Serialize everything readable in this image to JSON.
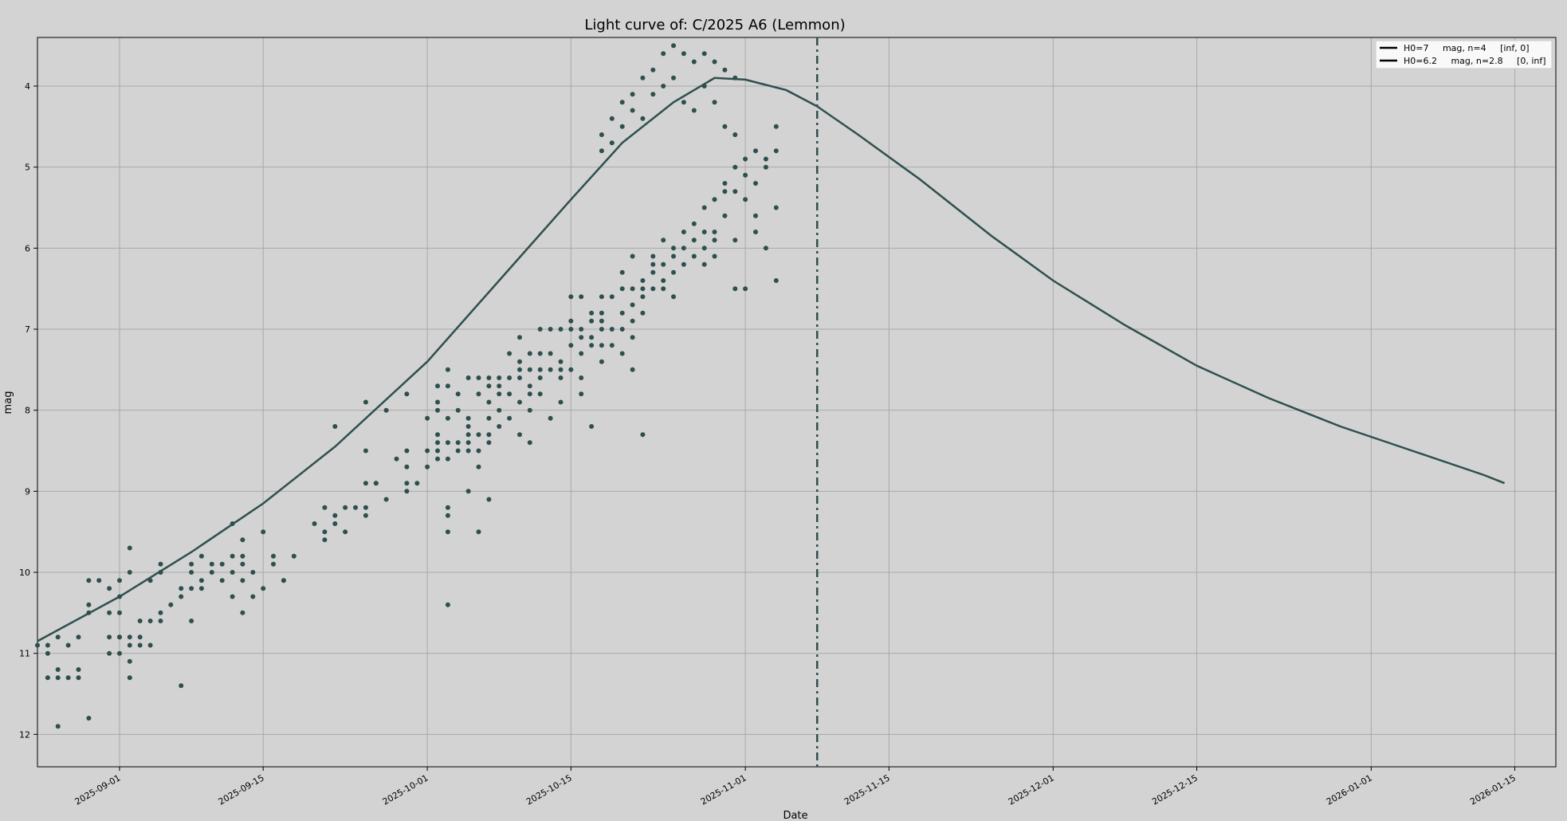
{
  "chart_data": {
    "type": "scatter",
    "title": "Light curve of: C/2025 A6 (Lemmon)",
    "xlabel": "Date",
    "ylabel": "mag",
    "xlim": [
      "2025-08-24",
      "2026-01-19"
    ],
    "ylim": [
      12.4,
      3.4
    ],
    "y_inverted": true,
    "grid": true,
    "legend_position": "top-right",
    "colors": {
      "background": "#d3d3d3",
      "series": "#2f4f4f",
      "grid": "#a9a9a9",
      "axis": "#000000"
    },
    "x_ticks": [
      "2025-09-01",
      "2025-09-15",
      "2025-10-01",
      "2025-10-15",
      "2025-11-01",
      "2025-11-15",
      "2025-12-01",
      "2025-12-15",
      "2026-01-01",
      "2026-01-15"
    ],
    "y_ticks": [
      4,
      5,
      6,
      7,
      8,
      9,
      10,
      11,
      12
    ],
    "vline_date": "2025-11-08",
    "legend": [
      {
        "label": "H0=7     mag, n=4     [inf, 0]"
      },
      {
        "label": "H0=6.2     mag, n=2.8     [0, inf]"
      }
    ],
    "model_curve": {
      "x": [
        "2025-08-24",
        "2025-09-01",
        "2025-09-08",
        "2025-09-15",
        "2025-09-22",
        "2025-10-01",
        "2025-10-08",
        "2025-10-15",
        "2025-10-20",
        "2025-10-25",
        "2025-10-29",
        "2025-11-01",
        "2025-11-05",
        "2025-11-08",
        "2025-11-12",
        "2025-11-18",
        "2025-11-25",
        "2025-12-01",
        "2025-12-08",
        "2025-12-15",
        "2025-12-22",
        "2025-12-29",
        "2026-01-05",
        "2026-01-12",
        "2026-01-14"
      ],
      "y": [
        10.85,
        10.3,
        9.75,
        9.15,
        8.45,
        7.4,
        6.4,
        5.4,
        4.7,
        4.2,
        3.9,
        3.92,
        4.05,
        4.25,
        4.6,
        5.15,
        5.85,
        6.4,
        6.95,
        7.45,
        7.85,
        8.2,
        8.5,
        8.8,
        8.9
      ]
    },
    "points": [
      [
        "2025-08-24",
        10.9
      ],
      [
        "2025-08-25",
        11.0
      ],
      [
        "2025-08-25",
        10.9
      ],
      [
        "2025-08-25",
        11.3
      ],
      [
        "2025-08-26",
        10.8
      ],
      [
        "2025-08-26",
        11.2
      ],
      [
        "2025-08-26",
        11.3
      ],
      [
        "2025-08-26",
        11.9
      ],
      [
        "2025-08-27",
        11.3
      ],
      [
        "2025-08-27",
        10.9
      ],
      [
        "2025-08-28",
        10.8
      ],
      [
        "2025-08-28",
        11.3
      ],
      [
        "2025-08-28",
        11.2
      ],
      [
        "2025-08-29",
        10.5
      ],
      [
        "2025-08-29",
        10.4
      ],
      [
        "2025-08-29",
        11.8
      ],
      [
        "2025-08-29",
        10.1
      ],
      [
        "2025-08-30",
        10.1
      ],
      [
        "2025-08-31",
        10.5
      ],
      [
        "2025-08-31",
        10.2
      ],
      [
        "2025-08-31",
        10.8
      ],
      [
        "2025-08-31",
        11.0
      ],
      [
        "2025-09-01",
        10.1
      ],
      [
        "2025-09-01",
        10.8
      ],
      [
        "2025-09-01",
        11.0
      ],
      [
        "2025-09-01",
        10.8
      ],
      [
        "2025-09-01",
        10.5
      ],
      [
        "2025-09-01",
        10.3
      ],
      [
        "2025-09-02",
        9.7
      ],
      [
        "2025-09-02",
        10.0
      ],
      [
        "2025-09-02",
        10.9
      ],
      [
        "2025-09-02",
        11.1
      ],
      [
        "2025-09-02",
        11.3
      ],
      [
        "2025-09-02",
        10.8
      ],
      [
        "2025-09-03",
        10.8
      ],
      [
        "2025-09-03",
        10.6
      ],
      [
        "2025-09-03",
        10.9
      ],
      [
        "2025-09-04",
        10.1
      ],
      [
        "2025-09-04",
        10.6
      ],
      [
        "2025-09-04",
        10.9
      ],
      [
        "2025-09-05",
        10.0
      ],
      [
        "2025-09-05",
        10.0
      ],
      [
        "2025-09-05",
        10.5
      ],
      [
        "2025-09-05",
        9.9
      ],
      [
        "2025-09-05",
        10.6
      ],
      [
        "2025-09-06",
        10.4
      ],
      [
        "2025-09-07",
        10.2
      ],
      [
        "2025-09-07",
        10.3
      ],
      [
        "2025-09-07",
        11.4
      ],
      [
        "2025-09-08",
        10.0
      ],
      [
        "2025-09-08",
        10.2
      ],
      [
        "2025-09-08",
        9.9
      ],
      [
        "2025-09-08",
        10.6
      ],
      [
        "2025-09-09",
        10.2
      ],
      [
        "2025-09-09",
        9.8
      ],
      [
        "2025-09-09",
        10.1
      ],
      [
        "2025-09-10",
        10.0
      ],
      [
        "2025-09-10",
        9.9
      ],
      [
        "2025-09-11",
        10.1
      ],
      [
        "2025-09-11",
        9.9
      ],
      [
        "2025-09-12",
        10.0
      ],
      [
        "2025-09-12",
        9.8
      ],
      [
        "2025-09-12",
        10.3
      ],
      [
        "2025-09-12",
        9.4
      ],
      [
        "2025-09-13",
        10.1
      ],
      [
        "2025-09-13",
        9.6
      ],
      [
        "2025-09-13",
        9.8
      ],
      [
        "2025-09-13",
        10.5
      ],
      [
        "2025-09-13",
        9.9
      ],
      [
        "2025-09-14",
        10.3
      ],
      [
        "2025-09-14",
        10.0
      ],
      [
        "2025-09-15",
        10.2
      ],
      [
        "2025-09-15",
        9.5
      ],
      [
        "2025-09-16",
        9.8
      ],
      [
        "2025-09-16",
        9.9
      ],
      [
        "2025-09-17",
        10.1
      ],
      [
        "2025-09-17",
        10.1
      ],
      [
        "2025-09-18",
        9.8
      ],
      [
        "2025-09-20",
        9.4
      ],
      [
        "2025-09-21",
        9.2
      ],
      [
        "2025-09-21",
        9.5
      ],
      [
        "2025-09-21",
        9.6
      ],
      [
        "2025-09-22",
        9.4
      ],
      [
        "2025-09-22",
        9.3
      ],
      [
        "2025-09-22",
        8.2
      ],
      [
        "2025-09-23",
        9.5
      ],
      [
        "2025-09-23",
        9.2
      ],
      [
        "2025-09-24",
        9.2
      ],
      [
        "2025-09-25",
        9.2
      ],
      [
        "2025-09-25",
        9.3
      ],
      [
        "2025-09-25",
        8.9
      ],
      [
        "2025-09-25",
        7.9
      ],
      [
        "2025-09-25",
        8.5
      ],
      [
        "2025-09-26",
        8.9
      ],
      [
        "2025-09-26",
        8.9
      ],
      [
        "2025-09-27",
        9.1
      ],
      [
        "2025-09-27",
        8.0
      ],
      [
        "2025-09-28",
        8.6
      ],
      [
        "2025-09-29",
        8.5
      ],
      [
        "2025-09-29",
        8.9
      ],
      [
        "2025-09-29",
        7.8
      ],
      [
        "2025-09-29",
        9.0
      ],
      [
        "2025-09-29",
        8.7
      ],
      [
        "2025-09-30",
        8.9
      ],
      [
        "2025-10-01",
        8.1
      ],
      [
        "2025-10-01",
        8.5
      ],
      [
        "2025-10-01",
        8.7
      ],
      [
        "2025-10-02",
        8.4
      ],
      [
        "2025-10-02",
        8.3
      ],
      [
        "2025-10-02",
        8.6
      ],
      [
        "2025-10-02",
        8.5
      ],
      [
        "2025-10-02",
        7.7
      ],
      [
        "2025-10-02",
        8.0
      ],
      [
        "2025-10-02",
        7.9
      ],
      [
        "2025-10-03",
        8.6
      ],
      [
        "2025-10-03",
        8.4
      ],
      [
        "2025-10-03",
        7.7
      ],
      [
        "2025-10-03",
        9.2
      ],
      [
        "2025-10-03",
        9.3
      ],
      [
        "2025-10-03",
        9.5
      ],
      [
        "2025-10-03",
        10.4
      ],
      [
        "2025-10-03",
        7.5
      ],
      [
        "2025-10-03",
        8.1
      ],
      [
        "2025-10-04",
        8.4
      ],
      [
        "2025-10-04",
        8.0
      ],
      [
        "2025-10-04",
        7.8
      ],
      [
        "2025-10-04",
        8.5
      ],
      [
        "2025-10-05",
        8.5
      ],
      [
        "2025-10-05",
        8.2
      ],
      [
        "2025-10-05",
        9.0
      ],
      [
        "2025-10-05",
        7.6
      ],
      [
        "2025-10-05",
        8.1
      ],
      [
        "2025-10-05",
        8.3
      ],
      [
        "2025-10-05",
        8.4
      ],
      [
        "2025-10-06",
        8.3
      ],
      [
        "2025-10-06",
        7.8
      ],
      [
        "2025-10-06",
        7.6
      ],
      [
        "2025-10-06",
        8.7
      ],
      [
        "2025-10-06",
        9.5
      ],
      [
        "2025-10-06",
        8.5
      ],
      [
        "2025-10-07",
        8.4
      ],
      [
        "2025-10-07",
        8.1
      ],
      [
        "2025-10-07",
        7.7
      ],
      [
        "2025-10-07",
        8.3
      ],
      [
        "2025-10-07",
        9.1
      ],
      [
        "2025-10-07",
        7.9
      ],
      [
        "2025-10-07",
        7.6
      ],
      [
        "2025-10-08",
        8.2
      ],
      [
        "2025-10-08",
        7.7
      ],
      [
        "2025-10-08",
        7.8
      ],
      [
        "2025-10-08",
        8.0
      ],
      [
        "2025-10-08",
        7.6
      ],
      [
        "2025-10-09",
        7.8
      ],
      [
        "2025-10-09",
        8.1
      ],
      [
        "2025-10-09",
        7.3
      ],
      [
        "2025-10-09",
        7.6
      ],
      [
        "2025-10-10",
        7.4
      ],
      [
        "2025-10-10",
        7.1
      ],
      [
        "2025-10-10",
        7.9
      ],
      [
        "2025-10-10",
        8.3
      ],
      [
        "2025-10-10",
        7.5
      ],
      [
        "2025-10-10",
        7.6
      ],
      [
        "2025-10-11",
        7.3
      ],
      [
        "2025-10-11",
        7.8
      ],
      [
        "2025-10-11",
        8.0
      ],
      [
        "2025-10-11",
        8.4
      ],
      [
        "2025-10-11",
        7.5
      ],
      [
        "2025-10-11",
        7.7
      ],
      [
        "2025-10-12",
        7.0
      ],
      [
        "2025-10-12",
        7.5
      ],
      [
        "2025-10-12",
        7.3
      ],
      [
        "2025-10-12",
        7.6
      ],
      [
        "2025-10-12",
        7.8
      ],
      [
        "2025-10-13",
        8.1
      ],
      [
        "2025-10-13",
        7.0
      ],
      [
        "2025-10-13",
        7.5
      ],
      [
        "2025-10-13",
        7.3
      ],
      [
        "2025-10-14",
        7.9
      ],
      [
        "2025-10-14",
        7.4
      ],
      [
        "2025-10-14",
        7.0
      ],
      [
        "2025-10-14",
        7.5
      ],
      [
        "2025-10-14",
        7.6
      ],
      [
        "2025-10-15",
        7.2
      ],
      [
        "2025-10-15",
        7.0
      ],
      [
        "2025-10-15",
        6.6
      ],
      [
        "2025-10-15",
        7.5
      ],
      [
        "2025-10-15",
        6.9
      ],
      [
        "2025-10-16",
        7.1
      ],
      [
        "2025-10-16",
        7.3
      ],
      [
        "2025-10-16",
        7.0
      ],
      [
        "2025-10-16",
        7.6
      ],
      [
        "2025-10-16",
        7.8
      ],
      [
        "2025-10-16",
        6.6
      ],
      [
        "2025-10-17",
        7.2
      ],
      [
        "2025-10-17",
        6.9
      ],
      [
        "2025-10-17",
        7.1
      ],
      [
        "2025-10-17",
        6.8
      ],
      [
        "2025-10-17",
        8.2
      ],
      [
        "2025-10-18",
        7.0
      ],
      [
        "2025-10-18",
        6.6
      ],
      [
        "2025-10-18",
        6.8
      ],
      [
        "2025-10-18",
        7.4
      ],
      [
        "2025-10-18",
        7.2
      ],
      [
        "2025-10-18",
        6.9
      ],
      [
        "2025-10-19",
        7.0
      ],
      [
        "2025-10-19",
        6.6
      ],
      [
        "2025-10-19",
        7.2
      ],
      [
        "2025-10-20",
        6.5
      ],
      [
        "2025-10-20",
        6.3
      ],
      [
        "2025-10-20",
        7.0
      ],
      [
        "2025-10-20",
        6.8
      ],
      [
        "2025-10-20",
        7.3
      ],
      [
        "2025-10-21",
        6.5
      ],
      [
        "2025-10-21",
        6.7
      ],
      [
        "2025-10-21",
        7.1
      ],
      [
        "2025-10-21",
        6.9
      ],
      [
        "2025-10-21",
        6.1
      ],
      [
        "2025-10-21",
        7.5
      ],
      [
        "2025-10-22",
        6.6
      ],
      [
        "2025-10-22",
        6.4
      ],
      [
        "2025-10-22",
        6.8
      ],
      [
        "2025-10-22",
        6.5
      ],
      [
        "2025-10-22",
        8.3
      ],
      [
        "2025-10-23",
        6.5
      ],
      [
        "2025-10-23",
        6.3
      ],
      [
        "2025-10-23",
        6.2
      ],
      [
        "2025-10-23",
        6.1
      ],
      [
        "2025-10-24",
        6.5
      ],
      [
        "2025-10-24",
        6.2
      ],
      [
        "2025-10-24",
        6.4
      ],
      [
        "2025-10-24",
        5.9
      ],
      [
        "2025-10-25",
        6.3
      ],
      [
        "2025-10-25",
        6.0
      ],
      [
        "2025-10-25",
        6.6
      ],
      [
        "2025-10-25",
        6.1
      ],
      [
        "2025-10-26",
        5.8
      ],
      [
        "2025-10-26",
        6.0
      ],
      [
        "2025-10-26",
        6.2
      ],
      [
        "2025-10-27",
        5.7
      ],
      [
        "2025-10-27",
        5.9
      ],
      [
        "2025-10-27",
        6.1
      ],
      [
        "2025-10-28",
        5.8
      ],
      [
        "2025-10-28",
        5.5
      ],
      [
        "2025-10-28",
        6.2
      ],
      [
        "2025-10-28",
        6.0
      ],
      [
        "2025-10-29",
        5.4
      ],
      [
        "2025-10-29",
        5.8
      ],
      [
        "2025-10-29",
        5.9
      ],
      [
        "2025-10-29",
        6.1
      ],
      [
        "2025-10-30",
        5.3
      ],
      [
        "2025-10-30",
        5.6
      ],
      [
        "2025-10-30",
        5.2
      ],
      [
        "2025-10-31",
        5.0
      ],
      [
        "2025-10-31",
        5.3
      ],
      [
        "2025-10-31",
        6.5
      ],
      [
        "2025-10-31",
        5.9
      ],
      [
        "2025-11-01",
        4.9
      ],
      [
        "2025-11-01",
        5.4
      ],
      [
        "2025-11-01",
        5.1
      ],
      [
        "2025-11-01",
        6.5
      ],
      [
        "2025-11-02",
        4.8
      ],
      [
        "2025-11-02",
        5.2
      ],
      [
        "2025-11-02",
        5.6
      ],
      [
        "2025-11-02",
        5.8
      ],
      [
        "2025-11-03",
        4.9
      ],
      [
        "2025-11-03",
        5.0
      ],
      [
        "2025-11-03",
        6.0
      ],
      [
        "2025-11-04",
        4.5
      ],
      [
        "2025-11-04",
        4.8
      ],
      [
        "2025-11-04",
        5.5
      ],
      [
        "2025-11-04",
        6.4
      ]
    ],
    "points_late": [
      [
        "2025-10-18",
        4.6
      ],
      [
        "2025-10-18",
        4.8
      ],
      [
        "2025-10-19",
        4.4
      ],
      [
        "2025-10-19",
        4.7
      ],
      [
        "2025-10-20",
        4.5
      ],
      [
        "2025-10-20",
        4.2
      ],
      [
        "2025-10-21",
        4.1
      ],
      [
        "2025-10-21",
        4.3
      ],
      [
        "2025-10-22",
        3.9
      ],
      [
        "2025-10-22",
        4.4
      ],
      [
        "2025-10-23",
        3.8
      ],
      [
        "2025-10-23",
        4.1
      ],
      [
        "2025-10-24",
        3.6
      ],
      [
        "2025-10-24",
        4.0
      ],
      [
        "2025-10-25",
        3.5
      ],
      [
        "2025-10-25",
        3.9
      ],
      [
        "2025-10-26",
        3.6
      ],
      [
        "2025-10-26",
        4.2
      ],
      [
        "2025-10-27",
        3.7
      ],
      [
        "2025-10-27",
        4.3
      ],
      [
        "2025-10-28",
        3.6
      ],
      [
        "2025-10-28",
        4.0
      ],
      [
        "2025-10-29",
        3.7
      ],
      [
        "2025-10-29",
        4.2
      ],
      [
        "2025-10-30",
        3.8
      ],
      [
        "2025-10-30",
        4.5
      ],
      [
        "2025-10-31",
        3.9
      ],
      [
        "2025-10-31",
        4.6
      ]
    ]
  }
}
